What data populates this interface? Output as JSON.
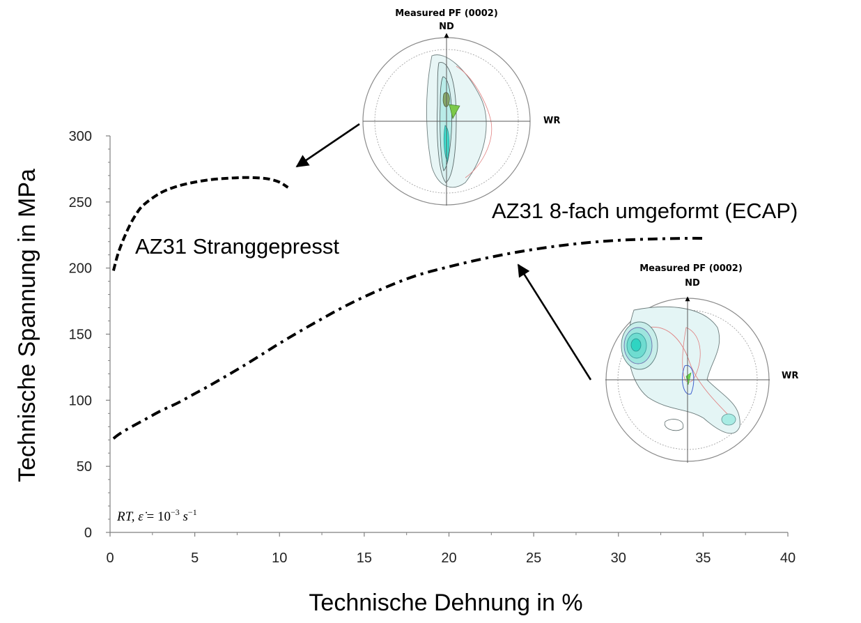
{
  "chart_data": {
    "type": "line",
    "xlabel": "Technische Dehnung in %",
    "ylabel": "Technische Spannung in MPa",
    "xlim": [
      0,
      40
    ],
    "ylim": [
      0,
      300
    ],
    "x_ticks": [
      "0",
      "5",
      "10",
      "15",
      "20",
      "25",
      "30",
      "35",
      "40"
    ],
    "y_ticks": [
      "0",
      "50",
      "100",
      "150",
      "200",
      "250",
      "300"
    ],
    "grid": false,
    "legend": "none",
    "condition_text": {
      "prefix": "RT, ",
      "strain_rate_symbol": "ε̇",
      "equals": " = 10",
      "exponent1": "−3",
      "unit": " s",
      "exponent2": "−1"
    },
    "series": [
      {
        "name": "AZ31 Stranggepresst",
        "style": "dashed",
        "color": "#000000",
        "x": [
          0.2,
          0.5,
          1,
          1.5,
          2,
          3,
          4,
          5,
          6,
          7,
          8,
          9,
          9.5,
          10,
          10.5
        ],
        "y": [
          198,
          212,
          228,
          240,
          248,
          257,
          262,
          265,
          267,
          268,
          268.5,
          268,
          267,
          265,
          261
        ]
      },
      {
        "name": "AZ31 8-fach umgeformt (ECAP)",
        "style": "dashdot",
        "color": "#000000",
        "x": [
          0.2,
          0.5,
          1,
          2,
          3,
          4,
          5,
          6,
          8,
          10,
          12,
          14,
          16,
          18,
          20,
          22,
          24,
          26,
          28,
          30,
          32,
          34,
          35
        ],
        "y": [
          71,
          74,
          78,
          85,
          92,
          98,
          105,
          112,
          127,
          143,
          158,
          172,
          184,
          194,
          201,
          207,
          212,
          216,
          219,
          221,
          222,
          222.5,
          222.5
        ]
      }
    ],
    "annotations": [
      {
        "text": "AZ31 Stranggepresst"
      },
      {
        "text": "AZ31 8-fach umgeformt (ECAP)"
      }
    ],
    "inset_pole_figures": [
      {
        "title": "Measured PF (0002)",
        "top_label": "ND",
        "right_label": "WR",
        "pattern": "basal-vertical-spread"
      },
      {
        "title": "Measured PF (0002)",
        "top_label": "ND",
        "right_label": "WR",
        "pattern": "tilted-basal-peak"
      }
    ]
  }
}
